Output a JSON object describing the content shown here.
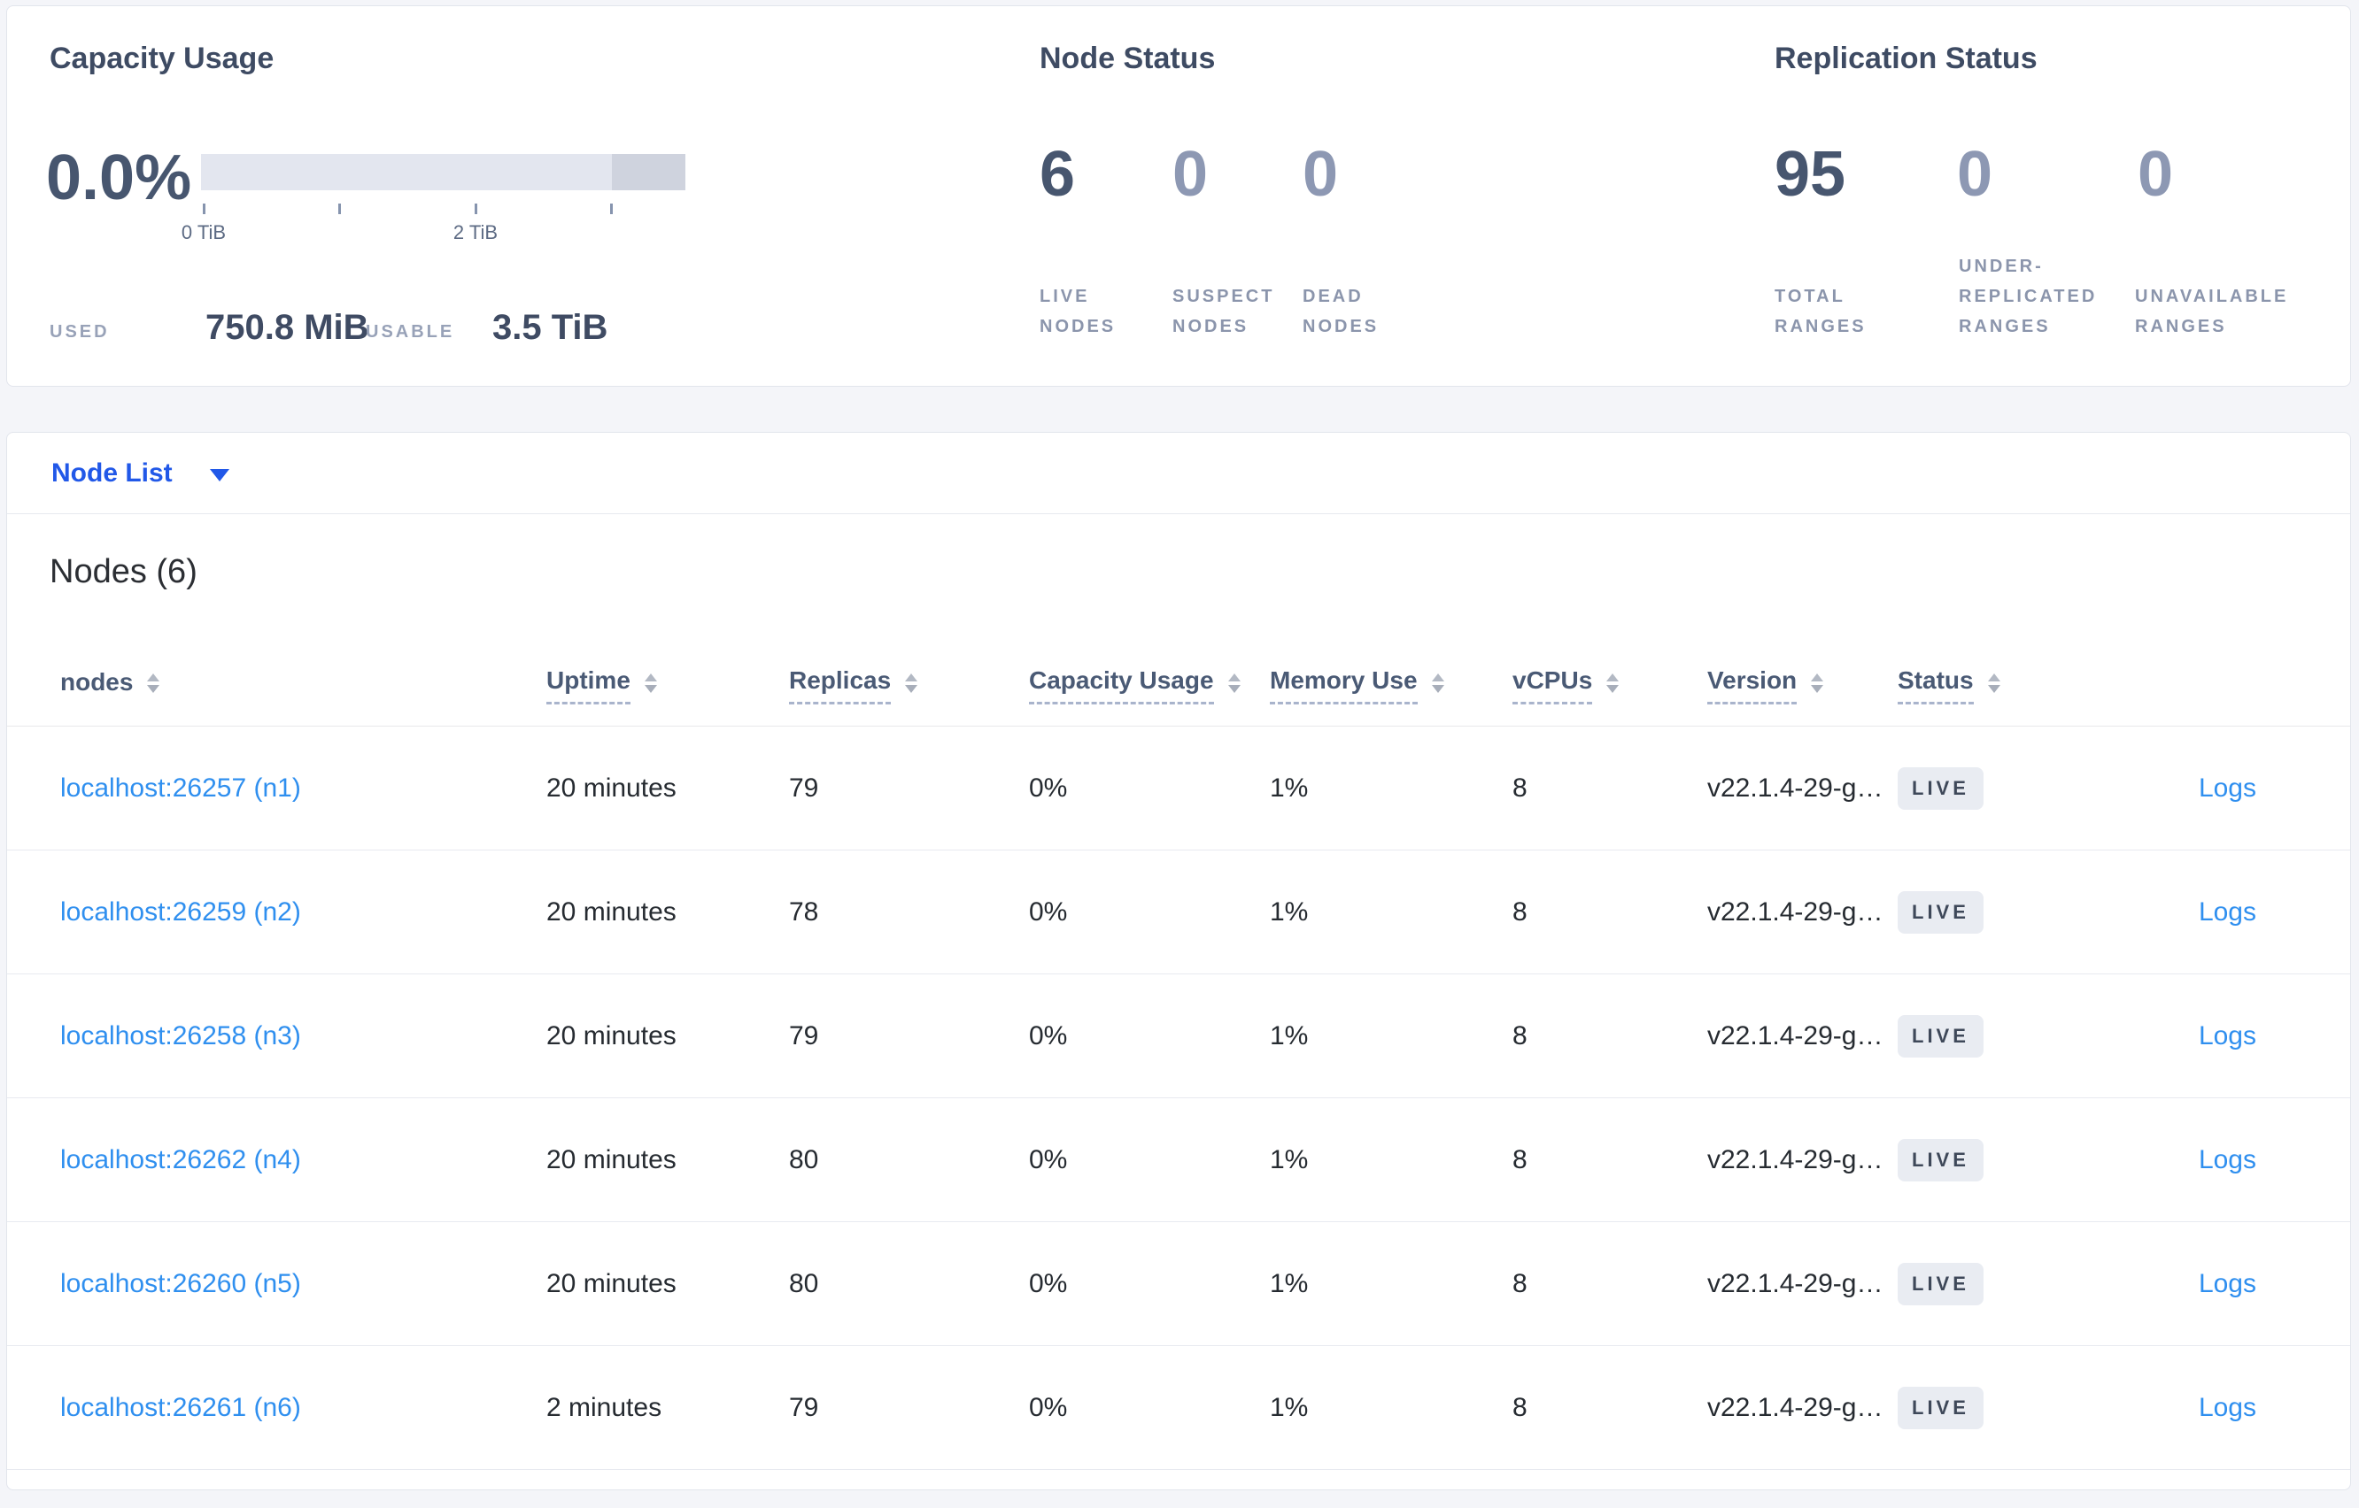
{
  "overview": {
    "capacity": {
      "title": "Capacity Usage",
      "percent": "0.0%",
      "axis_ticks": [
        {
          "label": "0 TiB",
          "offset": 2
        },
        {
          "label": "",
          "offset": 155
        },
        {
          "label": "2 TiB",
          "offset": 309
        },
        {
          "label": "",
          "offset": 462
        }
      ],
      "used_label": "USED",
      "used_value": "750.8 MiB",
      "usable_label": "USABLE",
      "usable_value": "3.5 TiB",
      "bar_color_light": "#e3e6ef",
      "bar_color_dark": "#cfd3de"
    },
    "node_status": {
      "title": "Node Status",
      "stats": [
        {
          "value": "6",
          "label": "LIVE NODES"
        },
        {
          "value": "0",
          "label": "SUSPECT NODES"
        },
        {
          "value": "0",
          "label": "DEAD NODES"
        }
      ]
    },
    "replication": {
      "title": "Replication Status",
      "stats": [
        {
          "value": "95",
          "label": "TOTAL RANGES"
        },
        {
          "value": "0",
          "label": "UNDER-REPLICATED RANGES"
        },
        {
          "value": "0",
          "label": "UNAVAILABLE RANGES"
        }
      ]
    }
  },
  "node_list": {
    "dropdown_label": "Node List",
    "section_title": "Nodes (6)",
    "columns": [
      {
        "label": "nodes",
        "tooltip": false
      },
      {
        "label": "Uptime",
        "tooltip": true
      },
      {
        "label": "Replicas",
        "tooltip": true
      },
      {
        "label": "Capacity Usage",
        "tooltip": true
      },
      {
        "label": "Memory Use",
        "tooltip": true
      },
      {
        "label": "vCPUs",
        "tooltip": true
      },
      {
        "label": "Version",
        "tooltip": true
      },
      {
        "label": "Status",
        "tooltip": true
      }
    ],
    "rows": [
      {
        "node": "localhost:26257 (n1)",
        "uptime": "20 minutes",
        "replicas": "79",
        "capacity": "0%",
        "memory": "1%",
        "vcpus": "8",
        "version": "v22.1.4-29-g…",
        "status": "LIVE",
        "logs": "Logs"
      },
      {
        "node": "localhost:26259 (n2)",
        "uptime": "20 minutes",
        "replicas": "78",
        "capacity": "0%",
        "memory": "1%",
        "vcpus": "8",
        "version": "v22.1.4-29-g…",
        "status": "LIVE",
        "logs": "Logs"
      },
      {
        "node": "localhost:26258 (n3)",
        "uptime": "20 minutes",
        "replicas": "79",
        "capacity": "0%",
        "memory": "1%",
        "vcpus": "8",
        "version": "v22.1.4-29-g…",
        "status": "LIVE",
        "logs": "Logs"
      },
      {
        "node": "localhost:26262 (n4)",
        "uptime": "20 minutes",
        "replicas": "80",
        "capacity": "0%",
        "memory": "1%",
        "vcpus": "8",
        "version": "v22.1.4-29-g…",
        "status": "LIVE",
        "logs": "Logs"
      },
      {
        "node": "localhost:26260 (n5)",
        "uptime": "20 minutes",
        "replicas": "80",
        "capacity": "0%",
        "memory": "1%",
        "vcpus": "8",
        "version": "v22.1.4-29-g…",
        "status": "LIVE",
        "logs": "Logs"
      },
      {
        "node": "localhost:26261 (n6)",
        "uptime": "2 minutes",
        "replicas": "79",
        "capacity": "0%",
        "memory": "1%",
        "vcpus": "8",
        "version": "v22.1.4-29-g…",
        "status": "LIVE",
        "logs": "Logs"
      }
    ]
  },
  "colors": {
    "page_background": "#f4f5f9",
    "card_background": "#ffffff",
    "accent_blue": "#2158e8",
    "link_blue": "#2f8fef",
    "dark_number": "#47566f",
    "muted_number": "#8d98b3",
    "badge_background": "#e9ecf2"
  }
}
